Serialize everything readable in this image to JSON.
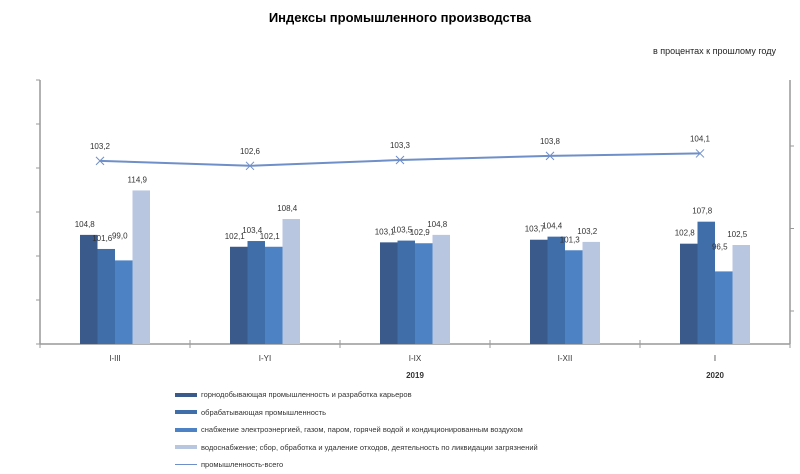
{
  "chart_data": {
    "type": "bar",
    "title": "Индексы промышленного производства",
    "subtitle": "в процентах к прошлому году",
    "categories": [
      "I-III",
      "I-YI",
      "I-IX",
      "I-XII",
      "I"
    ],
    "year_labels": [
      {
        "category": "I-IX",
        "label": "2019"
      },
      {
        "category": "I",
        "label": "2020"
      }
    ],
    "ylim": [
      80,
      140
    ],
    "ylim_secondary": [
      81,
      113
    ],
    "series": [
      {
        "name": "горнодобывающая промышленность и разработка карьеров",
        "kind": "bar",
        "color": "#3a5a8c",
        "values": [
          104.8,
          102.1,
          103.1,
          103.7,
          102.8
        ]
      },
      {
        "name": "обрабатывающая промышленность",
        "kind": "bar",
        "color": "#3f6ea8",
        "values": [
          101.6,
          103.4,
          103.5,
          104.4,
          107.8
        ]
      },
      {
        "name": "снабжение электроэнергией, газом, паром, горячей водой и  кондиционированным воздухом",
        "kind": "bar",
        "color": "#4d82c4",
        "values": [
          99.0,
          102.1,
          102.9,
          101.3,
          96.5
        ]
      },
      {
        "name": "водоснабжение; сбор, обработка и удаление отходов, деятельность по ликвидации загрязнений",
        "kind": "bar",
        "color": "#b8c6df",
        "values": [
          114.9,
          108.4,
          104.8,
          103.2,
          102.5
        ]
      },
      {
        "name": "промышленность-всего",
        "kind": "line",
        "axis": "secondary",
        "color": "#6f8fc8",
        "values": [
          103.2,
          102.6,
          103.3,
          103.8,
          104.1
        ]
      }
    ],
    "value_labels": [
      [
        "104,8",
        "102,1",
        "103,1",
        "103,7",
        "102,8"
      ],
      [
        "101,6",
        "103,4",
        "103,5",
        "104,4",
        "107,8"
      ],
      [
        "99,0",
        "102,1",
        "102,9",
        "101,3",
        "96,5"
      ],
      [
        "114,9",
        "108,4",
        "104,8",
        "103,2",
        "102,5"
      ],
      [
        "103,2",
        "102,6",
        "103,3",
        "103,8",
        "104,1"
      ]
    ],
    "legend_position": "bottom"
  }
}
